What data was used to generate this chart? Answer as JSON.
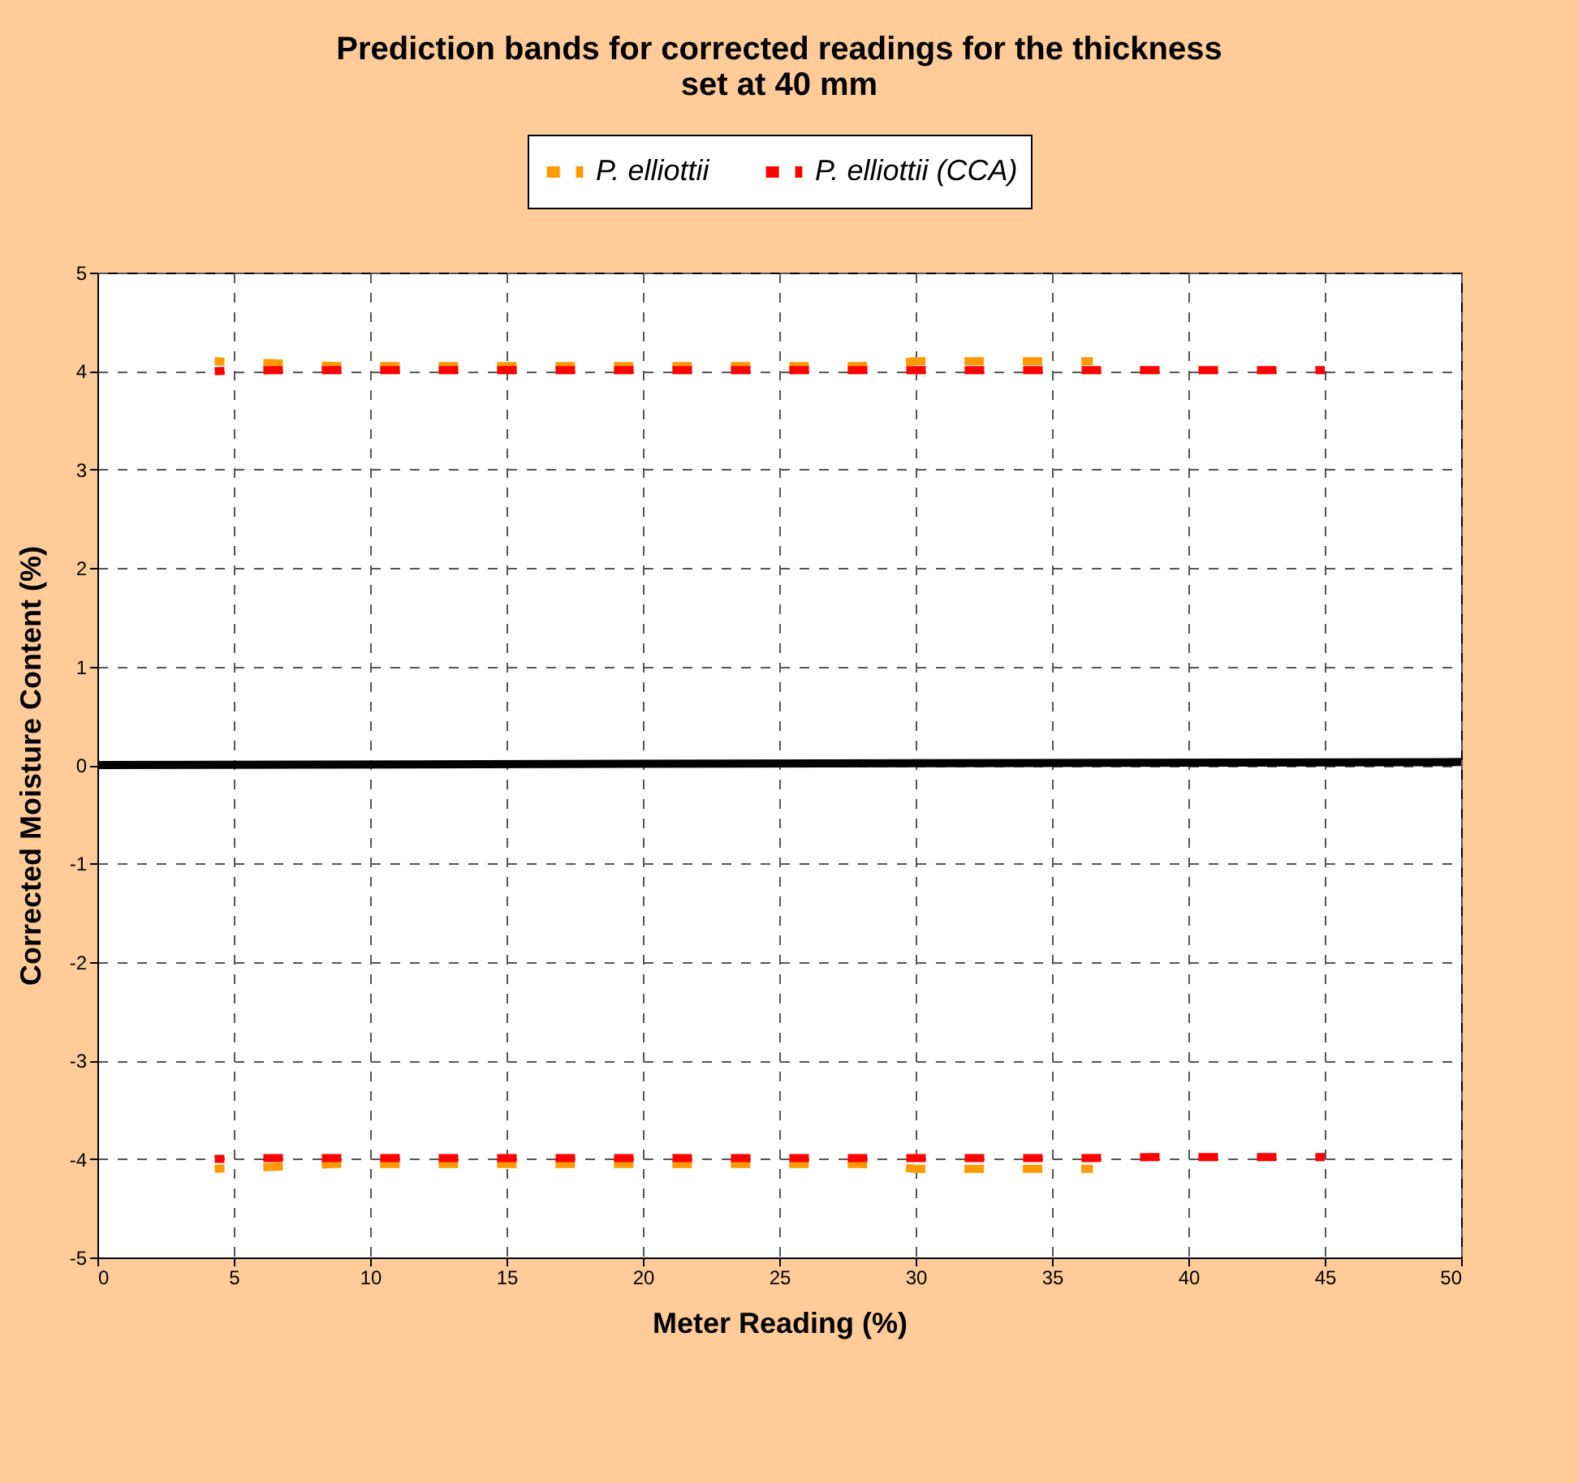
{
  "chart_data": {
    "type": "line",
    "title": "Prediction bands for corrected readings for the  thickness set at 40 mm",
    "xlabel": "Meter Reading (%)",
    "ylabel": "Corrected Moisture Content (%)",
    "xlim": [
      0,
      50
    ],
    "xticks": [
      0,
      5,
      10,
      15,
      20,
      25,
      30,
      35,
      40,
      45,
      50
    ],
    "ylim": [
      -5,
      5
    ],
    "yticks": [
      -5,
      -4,
      -3,
      -2,
      -1,
      0,
      1,
      2,
      3,
      4,
      5
    ],
    "grid": true,
    "legend": "top",
    "marker": "none",
    "series": [
      {
        "name": "P. elliottii",
        "color": "#ff9900",
        "line_style": "dashed",
        "x": [
          4.3,
          6.5,
          8.7,
          10.8,
          13,
          15.1,
          17.2,
          19.4,
          21.5,
          23.7,
          25.8,
          28,
          30,
          32.2,
          34.3,
          36.5
        ],
        "values": [
          4.1,
          4.08,
          4.05,
          4.05,
          4.05,
          4.05,
          4.05,
          4.05,
          4.05,
          4.05,
          4.05,
          4.05,
          4.1,
          4.1,
          4.1,
          4.1
        ]
      },
      {
        "color": "#ff9900",
        "line_style": "dashed",
        "x": [
          4.3,
          6.5,
          8.7,
          10.8,
          13,
          15.1,
          17.2,
          19.4,
          21.5,
          23.7,
          25.8,
          28,
          30,
          32.2,
          34.3,
          36.5
        ],
        "values": [
          -4.1,
          -4.08,
          -4.05,
          -4.05,
          -4.05,
          -4.05,
          -4.05,
          -4.05,
          -4.05,
          -4.05,
          -4.05,
          -4.05,
          -4.1,
          -4.1,
          -4.1,
          -4.1
        ]
      },
      {
        "name": "P. elliottii (CCA)",
        "color": "#ff0000",
        "line_style": "dashed",
        "x": [
          4.3,
          6.5,
          8.7,
          10.8,
          13,
          15.1,
          17.2,
          19.4,
          21.5,
          23.7,
          25.8,
          28,
          30,
          32.2,
          34.3,
          36.5,
          38.6,
          40.8,
          42.9,
          45
        ],
        "values": [
          4.0,
          4.01,
          4.01,
          4.01,
          4.01,
          4.01,
          4.01,
          4.01,
          4.01,
          4.01,
          4.01,
          4.01,
          4.01,
          4.01,
          4.01,
          4.01,
          4.01,
          4.01,
          4.01,
          4.01
        ]
      },
      {
        "color": "#ff0000",
        "line_style": "dashed",
        "x": [
          4.3,
          6.5,
          8.7,
          10.8,
          13,
          15.1,
          17.2,
          19.4,
          21.5,
          23.7,
          25.8,
          28,
          30,
          32.2,
          34.3,
          36.5,
          38.6,
          40.8,
          42.9,
          45
        ],
        "values": [
          -4.0,
          -3.99,
          -3.99,
          -3.99,
          -3.99,
          -3.99,
          -3.99,
          -3.99,
          -3.99,
          -3.99,
          -3.99,
          -3.99,
          -3.99,
          -3.99,
          -3.99,
          -3.99,
          -3.98,
          -3.98,
          -3.98,
          -3.98
        ]
      },
      {
        "color": "#000000",
        "line_style": "solid",
        "x": [
          0,
          50
        ],
        "values": [
          0,
          0.03
        ]
      }
    ]
  }
}
